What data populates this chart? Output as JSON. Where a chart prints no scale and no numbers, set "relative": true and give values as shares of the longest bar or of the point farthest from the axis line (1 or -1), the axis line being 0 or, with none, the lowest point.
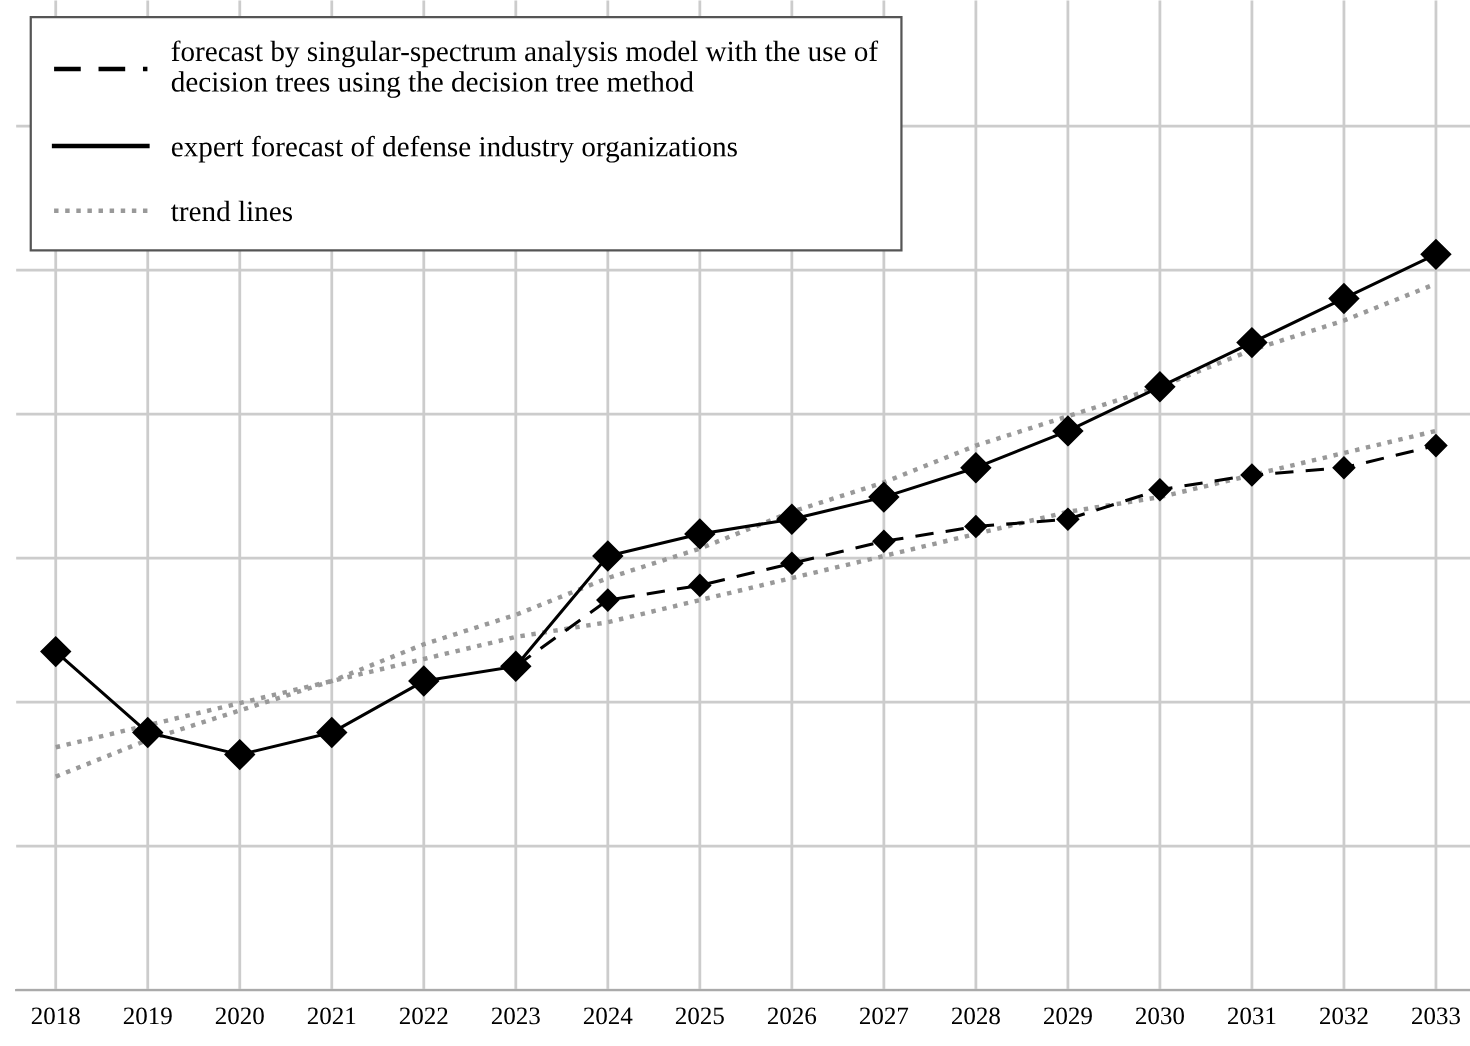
{
  "chart_data": {
    "type": "line",
    "relative": true,
    "grid": true,
    "legend": "top left",
    "marker": "diamond",
    "categories": [
      "2018",
      "2019",
      "2020",
      "2021",
      "2022",
      "2023",
      "2024",
      "2025",
      "2026",
      "2027",
      "2028",
      "2029",
      "2030",
      "2031",
      "2032",
      "2033"
    ],
    "series": [
      {
        "name": "forecast by singular-spectrum analysis model with the use of decision trees using the decision tree method",
        "color": "#000000",
        "line_style": "dashed",
        "values": [
          null,
          null,
          null,
          null,
          null,
          0.44,
          0.53,
          0.55,
          0.58,
          0.61,
          0.63,
          0.64,
          0.68,
          0.7,
          0.71,
          0.74
        ]
      },
      {
        "name": "expert forecast of defense industry organizations",
        "color": "#000000",
        "line_style": "solid",
        "values": [
          0.46,
          0.35,
          0.32,
          0.35,
          0.42,
          0.44,
          0.59,
          0.62,
          0.64,
          0.67,
          0.71,
          0.76,
          0.82,
          0.88,
          0.94,
          1.0
        ]
      },
      {
        "name": "trend lines",
        "color": "#999999",
        "line_style": "dotted",
        "marker": "none",
        "values": [
          0.29,
          0.34,
          0.38,
          0.42,
          0.47,
          0.51,
          0.56,
          0.6,
          0.65,
          0.69,
          0.74,
          0.78,
          0.82,
          0.87,
          0.91,
          0.96
        ]
      },
      {
        "color": "#999999",
        "line_style": "dotted",
        "marker": "none",
        "values": [
          0.33,
          0.36,
          0.39,
          0.42,
          0.45,
          0.48,
          0.5,
          0.53,
          0.56,
          0.59,
          0.62,
          0.65,
          0.67,
          0.7,
          0.73,
          0.76
        ]
      }
    ]
  }
}
